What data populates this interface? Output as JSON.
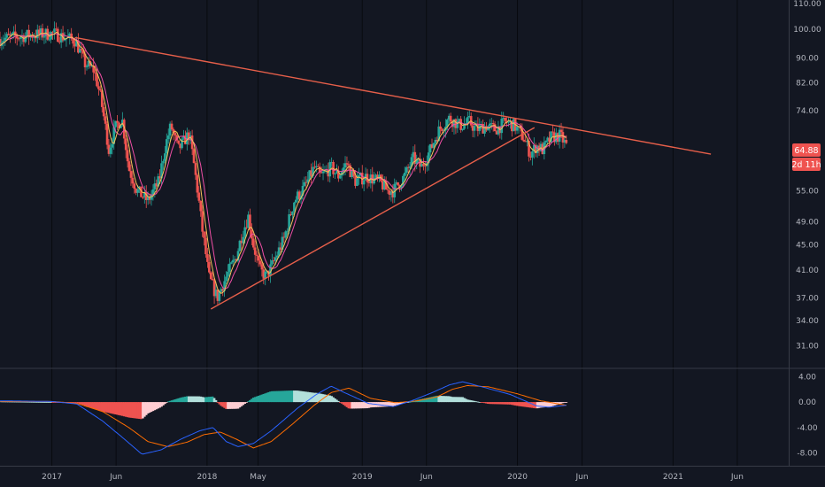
{
  "chart_data": {
    "type": "candlestick",
    "price_axis": {
      "min": 28.5,
      "max": 111.5,
      "scale": "log",
      "ticks": [
        "110.00",
        "100.00",
        "90.00",
        "82.00",
        "74.00",
        "64.88",
        "55.00",
        "49.00",
        "45.00",
        "41.00",
        "37.00",
        "34.00",
        "31.00"
      ]
    },
    "macd_axis": {
      "min": -10,
      "max": 5.3,
      "ticks": [
        "4.00",
        "0.00",
        "-4.00",
        "-8.00"
      ]
    },
    "time_axis": {
      "start": "2016-09-01",
      "end": "2021-09-30",
      "ticks": [
        {
          "date": "2017-01-01",
          "label": "2017"
        },
        {
          "date": "2017-06-01",
          "label": "Jun"
        },
        {
          "date": "2018-01-01",
          "label": "2018"
        },
        {
          "date": "2018-05-01",
          "label": "May"
        },
        {
          "date": "2019-01-01",
          "label": "2019"
        },
        {
          "date": "2019-06-01",
          "label": "Jun"
        },
        {
          "date": "2020-01-01",
          "label": "2020"
        },
        {
          "date": "2020-06-01",
          "label": "Jun"
        },
        {
          "date": "2021-01-01",
          "label": "2021"
        },
        {
          "date": "2021-06-01",
          "label": "Jun"
        }
      ]
    },
    "price_path": [
      [
        "2016-09-01",
        96.5
      ],
      [
        "2016-11-15",
        98
      ],
      [
        "2017-01-05",
        98.5
      ],
      [
        "2017-02-01",
        97
      ],
      [
        "2017-02-25",
        96
      ],
      [
        "2017-03-20",
        88
      ],
      [
        "2017-04-10",
        86
      ],
      [
        "2017-04-25",
        78
      ],
      [
        "2017-05-15",
        64
      ],
      [
        "2017-06-01",
        70
      ],
      [
        "2017-06-15",
        72
      ],
      [
        "2017-06-30",
        60
      ],
      [
        "2017-07-20",
        55
      ],
      [
        "2017-08-15",
        53
      ],
      [
        "2017-09-10",
        57
      ],
      [
        "2017-09-25",
        65
      ],
      [
        "2017-10-08",
        70
      ],
      [
        "2017-10-25",
        64
      ],
      [
        "2017-11-20",
        68
      ],
      [
        "2017-12-05",
        58
      ],
      [
        "2017-12-20",
        48
      ],
      [
        "2018-01-05",
        40
      ],
      [
        "2018-01-25",
        37
      ],
      [
        "2018-02-15",
        40
      ],
      [
        "2018-03-10",
        43
      ],
      [
        "2018-03-25",
        47
      ],
      [
        "2018-04-08",
        50
      ],
      [
        "2018-04-20",
        45
      ],
      [
        "2018-05-05",
        41
      ],
      [
        "2018-05-20",
        40
      ],
      [
        "2018-06-05",
        42
      ],
      [
        "2018-07-01",
        46
      ],
      [
        "2018-07-25",
        53
      ],
      [
        "2018-08-20",
        56
      ],
      [
        "2018-09-10",
        60
      ],
      [
        "2018-09-25",
        58
      ],
      [
        "2018-10-20",
        60
      ],
      [
        "2018-11-05",
        58
      ],
      [
        "2018-11-25",
        61
      ],
      [
        "2018-12-15",
        57
      ],
      [
        "2019-01-10",
        58
      ],
      [
        "2019-02-10",
        57
      ],
      [
        "2019-03-01",
        55
      ],
      [
        "2019-03-15",
        55
      ],
      [
        "2019-04-10",
        58
      ],
      [
        "2019-05-01",
        62
      ],
      [
        "2019-05-20",
        60
      ],
      [
        "2019-06-10",
        64
      ],
      [
        "2019-07-01",
        69
      ],
      [
        "2019-07-25",
        72
      ],
      [
        "2019-08-20",
        70
      ],
      [
        "2019-09-10",
        71
      ],
      [
        "2019-09-25",
        69
      ],
      [
        "2019-10-20",
        70
      ],
      [
        "2019-11-10",
        69
      ],
      [
        "2019-12-05",
        71
      ],
      [
        "2019-12-25",
        70
      ],
      [
        "2020-01-15",
        67
      ],
      [
        "2020-02-01",
        63
      ],
      [
        "2020-02-15",
        65
      ],
      [
        "2020-03-01",
        64
      ],
      [
        "2020-03-20",
        67
      ],
      [
        "2020-04-10",
        67.5
      ],
      [
        "2020-04-25",
        65
      ]
    ],
    "last_price": "64.88",
    "countdown": "2d 11h",
    "trendlines": [
      {
        "name": "descending resistance",
        "from": [
          "2017-02-25",
          97
        ],
        "to": [
          "2021-03-31",
          63
        ],
        "color": "#e65f4a"
      },
      {
        "name": "ascending support",
        "from": [
          "2018-01-10",
          35.5
        ],
        "to": [
          "2020-02-10",
          69.5
        ],
        "color": "#e65f4a"
      }
    ],
    "ma_colors": {
      "fast": "#f6c35a",
      "slow": "#ef4fa5"
    },
    "macd": {
      "histogram_colors": {
        "up_strong": "#26a69a",
        "up_weak": "#b2dfdb",
        "down_strong": "#ef5350",
        "down_weak": "#ffcdd2"
      },
      "line_colors": {
        "macd": "#2962ff",
        "signal": "#ff6d00"
      },
      "macd_line": [
        [
          "2016-09-01",
          0.2
        ],
        [
          "2017-01-01",
          0.1
        ],
        [
          "2017-03-01",
          -0.3
        ],
        [
          "2017-05-01",
          -3
        ],
        [
          "2017-06-15",
          -5.5
        ],
        [
          "2017-08-01",
          -8.2
        ],
        [
          "2017-09-15",
          -7.5
        ],
        [
          "2017-11-01",
          -5.8
        ],
        [
          "2017-12-15",
          -4.5
        ],
        [
          "2018-01-15",
          -4
        ],
        [
          "2018-02-15",
          -6.2
        ],
        [
          "2018-03-15",
          -7
        ],
        [
          "2018-04-20",
          -6.5
        ],
        [
          "2018-06-01",
          -4.5
        ],
        [
          "2018-08-01",
          -1
        ],
        [
          "2018-09-15",
          1.2
        ],
        [
          "2018-10-20",
          2.5
        ],
        [
          "2018-11-20",
          1.5
        ],
        [
          "2019-01-15",
          -0.2
        ],
        [
          "2019-03-15",
          -0.7
        ],
        [
          "2019-05-01",
          0.3
        ],
        [
          "2019-06-15",
          1.5
        ],
        [
          "2019-07-25",
          2.7
        ],
        [
          "2019-08-25",
          3.2
        ],
        [
          "2019-10-15",
          2.3
        ],
        [
          "2019-12-15",
          1.2
        ],
        [
          "2020-02-15",
          -0.6
        ],
        [
          "2020-03-15",
          -0.8
        ],
        [
          "2020-04-25",
          -0.5
        ]
      ],
      "signal_line": [
        [
          "2016-09-01",
          0.1
        ],
        [
          "2017-01-01",
          0.1
        ],
        [
          "2017-03-01",
          -0.2
        ],
        [
          "2017-05-01",
          -1.5
        ],
        [
          "2017-07-01",
          -4
        ],
        [
          "2017-08-15",
          -6.2
        ],
        [
          "2017-10-01",
          -7
        ],
        [
          "2017-11-15",
          -6.3
        ],
        [
          "2017-12-25",
          -5.1
        ],
        [
          "2018-02-01",
          -4.7
        ],
        [
          "2018-03-10",
          -5.8
        ],
        [
          "2018-04-20",
          -7.2
        ],
        [
          "2018-06-01",
          -6.2
        ],
        [
          "2018-07-20",
          -3.5
        ],
        [
          "2018-09-10",
          -0.5
        ],
        [
          "2018-10-20",
          1.5
        ],
        [
          "2018-12-01",
          2.2
        ],
        [
          "2019-01-20",
          0.6
        ],
        [
          "2019-03-20",
          -0.1
        ],
        [
          "2019-05-10",
          0.2
        ],
        [
          "2019-06-25",
          0.8
        ],
        [
          "2019-08-01",
          2
        ],
        [
          "2019-09-05",
          2.6
        ],
        [
          "2019-10-25",
          2.4
        ],
        [
          "2020-01-01",
          1.3
        ],
        [
          "2020-02-25",
          0.2
        ],
        [
          "2020-04-25",
          -0.5
        ]
      ]
    }
  }
}
